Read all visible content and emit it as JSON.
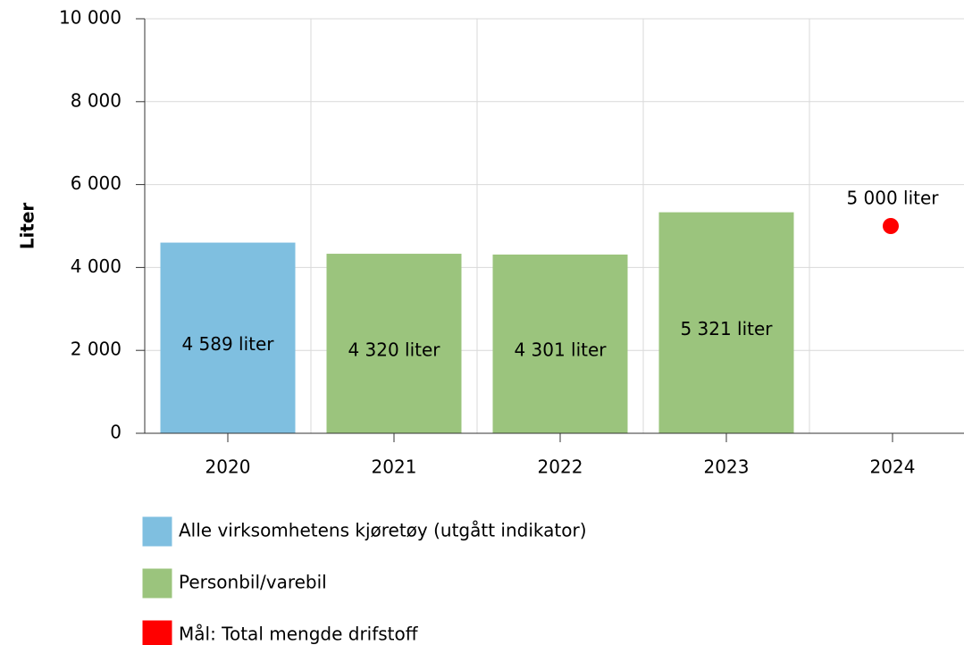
{
  "chart_data": {
    "type": "bar",
    "ylabel": "Liter",
    "categories": [
      "2020",
      "2021",
      "2022",
      "2023",
      "2024"
    ],
    "ylim": [
      0,
      10000
    ],
    "yticks": [
      0,
      {
        "value": 2000,
        "label": "2 000"
      },
      {
        "value": 4000,
        "label": "4 000"
      },
      {
        "value": 6000,
        "label": "6 000"
      },
      {
        "value": 8000,
        "label": "8 000"
      },
      {
        "value": 10000,
        "label": "10 000"
      }
    ],
    "grid": true,
    "legend": "bottom",
    "series": [
      {
        "name": "Alle virksomhetens kjøretøy (utgått indikator)",
        "color": "#7fbfe0",
        "values": [
          4589,
          null,
          null,
          null,
          null
        ],
        "value_labels": [
          "4 589 liter",
          null,
          null,
          null,
          null
        ]
      },
      {
        "name": "Personbil/varebil",
        "color": "#9bc47d",
        "values": [
          null,
          4320,
          4301,
          5321,
          null
        ],
        "value_labels": [
          null,
          "4 320 liter",
          "4 301 liter",
          "5 321 liter",
          null
        ]
      },
      {
        "name": "Mål: Total mengde drifstoff",
        "type": "scatter",
        "color": "#ff0000",
        "values": [
          null,
          null,
          null,
          null,
          5000
        ],
        "value_labels": [
          null,
          null,
          null,
          null,
          "5 000 liter"
        ]
      }
    ]
  }
}
